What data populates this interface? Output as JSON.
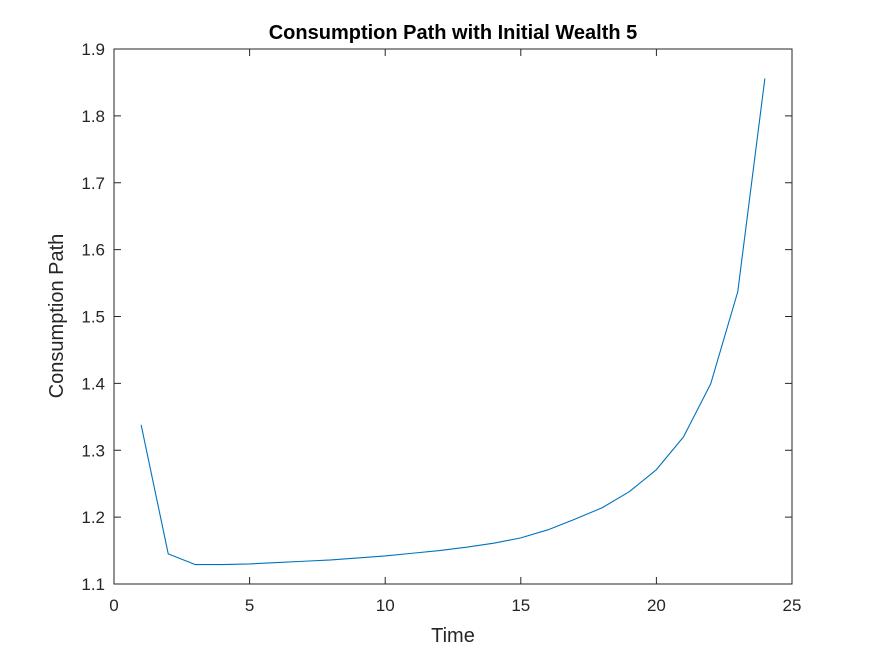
{
  "chart_data": {
    "type": "line",
    "title": "Consumption Path with Initial Wealth 5",
    "xlabel": "Time",
    "ylabel": "Consumption Path",
    "xlim": [
      0,
      25
    ],
    "ylim": [
      1.1,
      1.9
    ],
    "xticks": [
      "0",
      "5",
      "10",
      "15",
      "20",
      "25"
    ],
    "yticks": [
      "1.1",
      "1.2",
      "1.3",
      "1.4",
      "1.5",
      "1.6",
      "1.7",
      "1.8",
      "1.9"
    ],
    "grid": false,
    "legend": "none",
    "series": [
      {
        "color": "#0072BD",
        "x": [
          1,
          2,
          3,
          4,
          5,
          6,
          7,
          8,
          9,
          10,
          11,
          12,
          13,
          14,
          15,
          16,
          17,
          18,
          19,
          20,
          21,
          22,
          23,
          24
        ],
        "y": [
          1.338,
          1.145,
          1.129,
          1.129,
          1.13,
          1.132,
          1.134,
          1.136,
          1.139,
          1.142,
          1.146,
          1.15,
          1.155,
          1.161,
          1.169,
          1.181,
          1.197,
          1.214,
          1.238,
          1.271,
          1.32,
          1.399,
          1.537,
          1.856
        ]
      }
    ]
  }
}
